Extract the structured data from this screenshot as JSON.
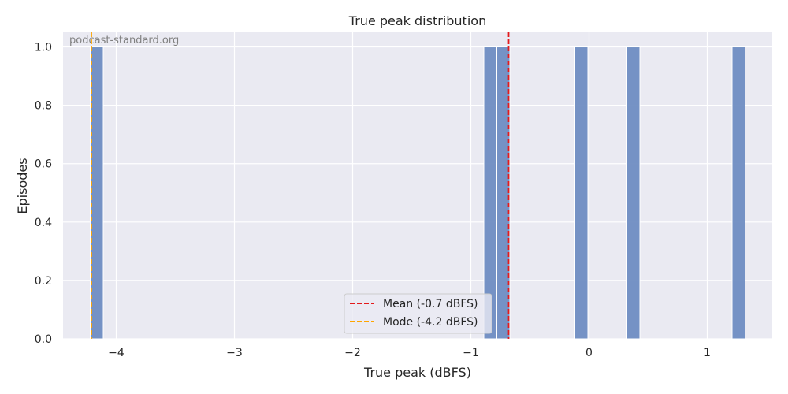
{
  "chart_data": {
    "type": "bar",
    "title": "True peak distribution",
    "xlabel": "True peak (dBFS)",
    "ylabel": "Episodes",
    "watermark": "podcast-standard.org",
    "xlim": [
      -4.45,
      1.55
    ],
    "ylim": [
      0,
      1.05
    ],
    "xticks": [
      -4,
      -3,
      -2,
      -1,
      0,
      1
    ],
    "xtick_labels": [
      "−4",
      "−3",
      "−2",
      "−1",
      "0",
      "1"
    ],
    "yticks": [
      0.0,
      0.2,
      0.4,
      0.6,
      0.8,
      1.0
    ],
    "ytick_labels": [
      "0.0",
      "0.2",
      "0.4",
      "0.6",
      "0.8",
      "1.0"
    ],
    "grid": true,
    "bar_color": "#6f8dc2",
    "bars": [
      {
        "x0": -4.22,
        "x1": -4.11,
        "value": 1
      },
      {
        "x0": -0.89,
        "x1": -0.78,
        "value": 1
      },
      {
        "x0": -0.78,
        "x1": -0.67,
        "value": 1
      },
      {
        "x0": -0.12,
        "x1": -0.01,
        "value": 1
      },
      {
        "x0": 0.32,
        "x1": 0.43,
        "value": 1
      },
      {
        "x0": 1.21,
        "x1": 1.32,
        "value": 1
      }
    ],
    "reference_lines": [
      {
        "name": "Mean (-0.7 dBFS)",
        "x": -0.68,
        "color": "#e31a1c"
      },
      {
        "name": "Mode (-4.2 dBFS)",
        "x": -4.21,
        "color": "#ffa500"
      }
    ],
    "legend_position": "bottom-center"
  }
}
